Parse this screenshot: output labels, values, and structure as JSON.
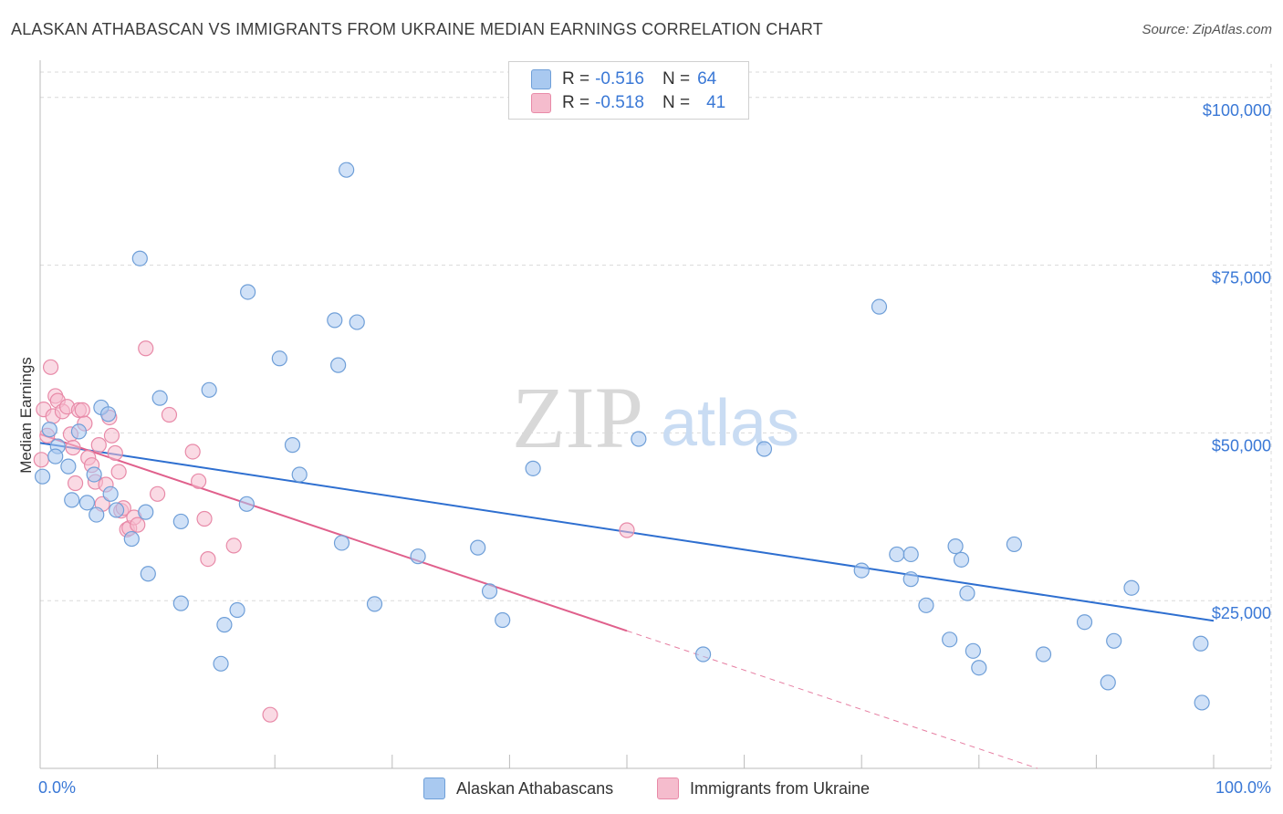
{
  "header": {
    "title": "ALASKAN ATHABASCAN VS IMMIGRANTS FROM UKRAINE MEDIAN EARNINGS CORRELATION CHART",
    "source": "Source: ZipAtlas.com"
  },
  "legend": {
    "series1": {
      "r_label": "R = ",
      "r_value": "-0.516",
      "n_label": "N = ",
      "n_value": "64"
    },
    "series2": {
      "r_label": "R = ",
      "r_value": "-0.518",
      "n_label": "N = ",
      "n_value": "41"
    }
  },
  "bottom_legend": {
    "series1": "Alaskan Athabascans",
    "series2": "Immigrants from Ukraine"
  },
  "watermark": {
    "zip": "ZIP",
    "atlas": "atlas"
  },
  "colors": {
    "blue_fill": "#a9c9f0",
    "blue_stroke": "#6f9fd8",
    "blue_line": "#2e6fd0",
    "pink_fill": "#f5bccd",
    "pink_stroke": "#e88aa8",
    "pink_line": "#e0608c",
    "axis_text": "#3a78d6",
    "grid": "#d9d9d9"
  },
  "chart_data": {
    "type": "scatter",
    "title": "ALASKAN ATHABASCAN VS IMMIGRANTS FROM UKRAINE MEDIAN EARNINGS CORRELATION CHART",
    "xlabel": "",
    "ylabel": "Median Earnings",
    "xlim": [
      0,
      100
    ],
    "ylim": [
      0,
      105000
    ],
    "x_tick_labels": [
      "0.0%",
      "100.0%"
    ],
    "y_ticks": [
      25000,
      50000,
      75000,
      100000
    ],
    "y_tick_labels": [
      "$25,000",
      "$50,000",
      "$75,000",
      "$100,000"
    ],
    "series": [
      {
        "name": "Alaskan Athabascans",
        "r": -0.516,
        "n": 64,
        "trend": {
          "x0": 0,
          "y0": 48500,
          "x1": 100,
          "y1": 22000
        },
        "points": [
          [
            0.2,
            43500
          ],
          [
            0.8,
            50500
          ],
          [
            1.5,
            48000
          ],
          [
            1.3,
            46500
          ],
          [
            2.4,
            45000
          ],
          [
            2.7,
            40000
          ],
          [
            3.3,
            50200
          ],
          [
            4.0,
            39600
          ],
          [
            4.6,
            43800
          ],
          [
            4.8,
            37800
          ],
          [
            5.2,
            53800
          ],
          [
            5.8,
            52800
          ],
          [
            6.0,
            40900
          ],
          [
            6.5,
            38500
          ],
          [
            7.8,
            34200
          ],
          [
            8.5,
            76000
          ],
          [
            9.0,
            38200
          ],
          [
            9.2,
            29000
          ],
          [
            10.2,
            55200
          ],
          [
            12.0,
            36800
          ],
          [
            12.0,
            24600
          ],
          [
            14.4,
            56400
          ],
          [
            15.7,
            21400
          ],
          [
            16.8,
            23600
          ],
          [
            15.4,
            15600
          ],
          [
            17.6,
            39400
          ],
          [
            17.7,
            71000
          ],
          [
            20.4,
            61100
          ],
          [
            21.5,
            48200
          ],
          [
            22.1,
            43800
          ],
          [
            25.1,
            66800
          ],
          [
            25.4,
            60100
          ],
          [
            25.7,
            33600
          ],
          [
            26.1,
            89200
          ],
          [
            27.0,
            66500
          ],
          [
            28.5,
            24500
          ],
          [
            32.2,
            31600
          ],
          [
            37.3,
            32900
          ],
          [
            38.3,
            26400
          ],
          [
            39.4,
            22100
          ],
          [
            42.0,
            44700
          ],
          [
            51.0,
            49100
          ],
          [
            56.5,
            17000
          ],
          [
            61.7,
            47600
          ],
          [
            70.0,
            29500
          ],
          [
            71.5,
            68800
          ],
          [
            73.0,
            31900
          ],
          [
            74.2,
            28200
          ],
          [
            74.2,
            31900
          ],
          [
            75.5,
            24300
          ],
          [
            77.5,
            19200
          ],
          [
            78.0,
            33100
          ],
          [
            78.5,
            31100
          ],
          [
            79.0,
            26100
          ],
          [
            79.5,
            17500
          ],
          [
            80.0,
            15000
          ],
          [
            83.0,
            33400
          ],
          [
            85.5,
            17000
          ],
          [
            89.0,
            21800
          ],
          [
            91.0,
            12800
          ],
          [
            91.5,
            19000
          ],
          [
            93.0,
            26900
          ],
          [
            98.9,
            18600
          ],
          [
            99.0,
            9800
          ]
        ]
      },
      {
        "name": "Immigrants from Ukraine",
        "r": -0.518,
        "n": 41,
        "trend": {
          "x0": 0,
          "y0": 49800,
          "x1": 50,
          "y1": 20500
        },
        "trend_dashed": {
          "x0": 50,
          "y0": 20500,
          "x1": 100,
          "y1": -8800
        },
        "points": [
          [
            0.3,
            53500
          ],
          [
            0.6,
            49600
          ],
          [
            0.9,
            59800
          ],
          [
            1.1,
            52500
          ],
          [
            1.3,
            55500
          ],
          [
            1.5,
            54800
          ],
          [
            1.9,
            53200
          ],
          [
            2.3,
            53900
          ],
          [
            2.6,
            49800
          ],
          [
            2.8,
            47800
          ],
          [
            3.0,
            42500
          ],
          [
            3.3,
            53400
          ],
          [
            3.6,
            53400
          ],
          [
            3.8,
            51400
          ],
          [
            4.1,
            46300
          ],
          [
            4.4,
            45200
          ],
          [
            4.7,
            42700
          ],
          [
            5.0,
            48200
          ],
          [
            5.3,
            39400
          ],
          [
            5.6,
            42300
          ],
          [
            5.9,
            52300
          ],
          [
            6.1,
            49600
          ],
          [
            6.4,
            47000
          ],
          [
            6.7,
            44200
          ],
          [
            6.9,
            38400
          ],
          [
            7.1,
            38800
          ],
          [
            7.4,
            35600
          ],
          [
            7.6,
            35800
          ],
          [
            8.0,
            37400
          ],
          [
            8.3,
            36300
          ],
          [
            9.0,
            62600
          ],
          [
            10.0,
            40900
          ],
          [
            11.0,
            52700
          ],
          [
            13.0,
            47200
          ],
          [
            13.5,
            42800
          ],
          [
            14.0,
            37200
          ],
          [
            14.3,
            31200
          ],
          [
            16.5,
            33200
          ],
          [
            19.6,
            8000
          ],
          [
            50.0,
            35500
          ],
          [
            0.1,
            46000
          ]
        ]
      }
    ]
  }
}
